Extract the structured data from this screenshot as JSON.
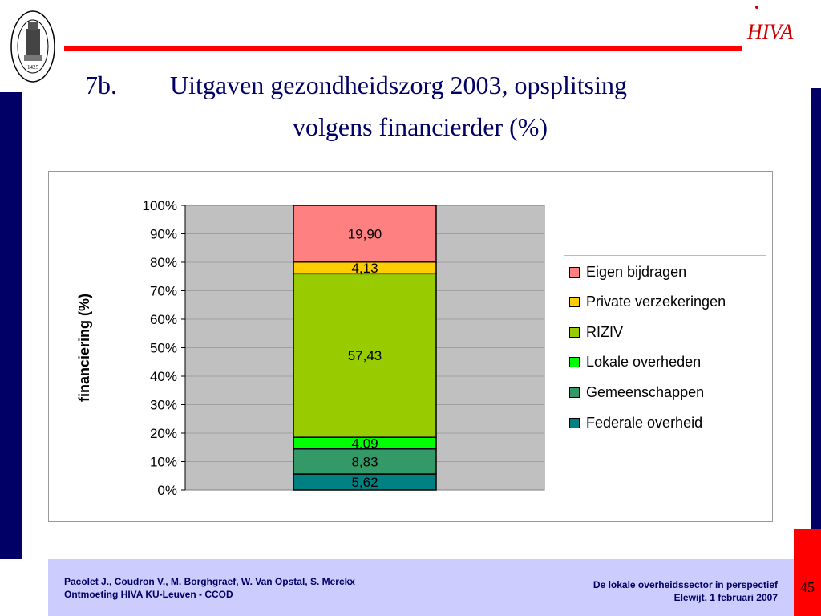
{
  "title": {
    "number": "7b.",
    "line1": "Uitgaven gezondheidszorg 2003, opsplitsing",
    "line2": "volgens financierder (%)"
  },
  "chart_data": {
    "type": "bar",
    "stacked": true,
    "categories": [
      ""
    ],
    "ylabel": "financiering (%)",
    "ylim": [
      0,
      100
    ],
    "yticks": [
      "0%",
      "10%",
      "20%",
      "30%",
      "40%",
      "50%",
      "60%",
      "70%",
      "80%",
      "90%",
      "100%"
    ],
    "legend_position": "right",
    "series": [
      {
        "name": "Federale overheid",
        "values": [
          5.62
        ],
        "label": "5,62",
        "color": "#008080"
      },
      {
        "name": "Gemeenschappen",
        "values": [
          8.83
        ],
        "label": "8,83",
        "color": "#339966"
      },
      {
        "name": "Lokale overheden",
        "values": [
          4.09
        ],
        "label": "4,09",
        "color": "#00ff00"
      },
      {
        "name": "RIZIV",
        "values": [
          57.43
        ],
        "label": "57,43",
        "color": "#99cc00"
      },
      {
        "name": "Private verzekeringen",
        "values": [
          4.13
        ],
        "label": "4,13",
        "color": "#ffcc00"
      },
      {
        "name": "Eigen bijdragen",
        "values": [
          19.9
        ],
        "label": "19,90",
        "color": "#ff8080"
      }
    ],
    "legend_order": [
      "Eigen bijdragen",
      "Private verzekeringen",
      "RIZIV",
      "Lokale overheden",
      "Gemeenschappen",
      "Federale overheid"
    ],
    "plot_background": "#c0c0c0"
  },
  "footer": {
    "authors": "Pacolet J., Coudron V., M. Borghgraef, W. Van Opstal, S. Merckx",
    "event": "Ontmoeting HIVA KU-Leuven - CCOD",
    "topic": "De lokale overheidssector in perspectief",
    "place_date": "Elewijt, 1 februari 2007",
    "page": "45"
  },
  "logos": {
    "seal_year": "1425",
    "brand_text": "HIVA",
    "brand_color": "#cc0000"
  }
}
